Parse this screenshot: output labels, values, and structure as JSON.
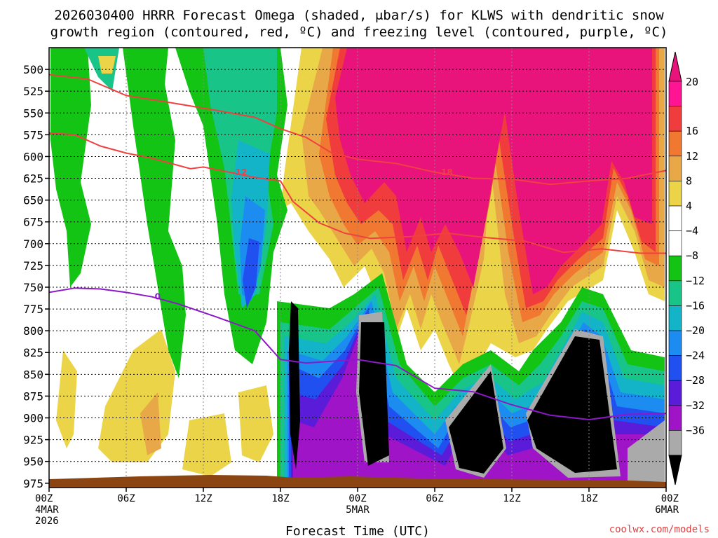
{
  "title": {
    "line1": "2026030400 HRRR Forecast Omega (shaded, μbar/s) for KLWS with dendritic snow",
    "line2": "growth region (contoured, red, ºC) and freezing level (contoured, purple, ºC)"
  },
  "credit": "coolwx.com/models",
  "chart_data": {
    "type": "heatmap",
    "xlabel": "Forecast Time (UTC)",
    "ylabel": "",
    "x_range_hours": [
      0,
      48
    ],
    "y_range_hpa": [
      475,
      980
    ],
    "y_ticks": [
      500,
      525,
      550,
      575,
      600,
      625,
      650,
      675,
      700,
      725,
      750,
      775,
      800,
      825,
      850,
      875,
      900,
      925,
      950,
      975
    ],
    "x_ticks": [
      {
        "hour": 0,
        "label": "00Z",
        "sub": [
          "4MAR",
          "2026"
        ]
      },
      {
        "hour": 6,
        "label": "06Z",
        "sub": []
      },
      {
        "hour": 12,
        "label": "12Z",
        "sub": []
      },
      {
        "hour": 18,
        "label": "18Z",
        "sub": []
      },
      {
        "hour": 24,
        "label": "00Z",
        "sub": [
          "5MAR"
        ]
      },
      {
        "hour": 30,
        "label": "06Z",
        "sub": []
      },
      {
        "hour": 36,
        "label": "12Z",
        "sub": []
      },
      {
        "hour": 42,
        "label": "18Z",
        "sub": []
      },
      {
        "hour": 48,
        "label": "00Z",
        "sub": [
          "6MAR"
        ]
      }
    ],
    "grid": true,
    "colorbar": {
      "labels": [
        "20",
        "16",
        "12",
        "8",
        "4",
        "−4",
        "−8",
        "−12",
        "−16",
        "−20",
        "−24",
        "−28",
        "−32",
        "−36"
      ],
      "bands": [
        "#ff1493",
        "#f03c3c",
        "#f07830",
        "#e8a848",
        "#ecd448",
        "#ffffff",
        "#ffffff",
        "#14c414",
        "#18c488",
        "#14b4c8",
        "#1c8cf0",
        "#2050f0",
        "#5a1cd8",
        "#a014c8",
        "#aaaaaa"
      ],
      "over_color": "#e8147c",
      "under_color": "#000000"
    },
    "contours": [
      {
        "label": "-12",
        "color": "#f04040",
        "points": [
          [
            0,
            573
          ],
          [
            2,
            575
          ],
          [
            4,
            588
          ],
          [
            6,
            596
          ],
          [
            8,
            602
          ],
          [
            10,
            610
          ],
          [
            11,
            614
          ],
          [
            12,
            612
          ],
          [
            14,
            618
          ],
          [
            16,
            624
          ],
          [
            18,
            628
          ],
          [
            19,
            652
          ],
          [
            21,
            676
          ],
          [
            23,
            688
          ],
          [
            25,
            694
          ],
          [
            28,
            692
          ],
          [
            31,
            688
          ],
          [
            34,
            693
          ],
          [
            37,
            697
          ],
          [
            40,
            710
          ],
          [
            43,
            706
          ],
          [
            46,
            711
          ],
          [
            48,
            711
          ]
        ]
      },
      {
        "label": "-18",
        "color": "#f04040",
        "points": [
          [
            0,
            506
          ],
          [
            3,
            511
          ],
          [
            6,
            530
          ],
          [
            9,
            537
          ],
          [
            13,
            547
          ],
          [
            16,
            555
          ],
          [
            18,
            568
          ],
          [
            20,
            578
          ],
          [
            22,
            596
          ],
          [
            24,
            603
          ],
          [
            27,
            608
          ],
          [
            30,
            618
          ],
          [
            33,
            625
          ],
          [
            36,
            626
          ],
          [
            39,
            632
          ],
          [
            42,
            628
          ],
          [
            45,
            625
          ],
          [
            48,
            616
          ]
        ]
      },
      {
        "label": "0",
        "color": "#8c18c8",
        "points": [
          [
            0,
            756
          ],
          [
            2,
            751
          ],
          [
            4,
            752
          ],
          [
            6,
            756
          ],
          [
            8,
            761
          ],
          [
            10,
            769
          ],
          [
            13,
            784
          ],
          [
            16,
            800
          ],
          [
            18,
            833
          ],
          [
            20,
            837
          ],
          [
            24,
            833
          ],
          [
            27,
            840
          ],
          [
            30,
            866
          ],
          [
            33,
            870
          ],
          [
            36,
            885
          ],
          [
            39,
            897
          ],
          [
            42,
            902
          ],
          [
            45,
            896
          ],
          [
            48,
            895
          ]
        ]
      }
    ]
  }
}
